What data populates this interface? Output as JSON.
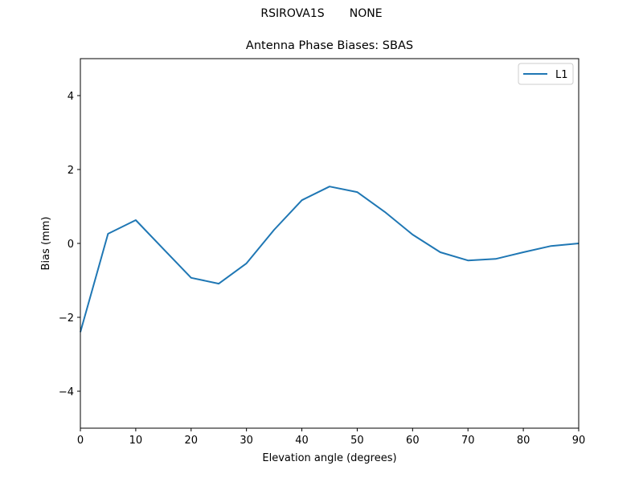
{
  "figure": {
    "suptitle": "RSIROVA1S       NONE",
    "title": "Antenna Phase Biases: SBAS"
  },
  "colors": {
    "series_L1": "#1f77b4",
    "axes": "#000000",
    "background": "#ffffff"
  },
  "chart_data": {
    "type": "line",
    "title": "Antenna Phase Biases: SBAS",
    "suptitle": "RSIROVA1S       NONE",
    "xlabel": "Elevation angle (degrees)",
    "ylabel": "Bias (mm)",
    "xlim": [
      0,
      90
    ],
    "ylim": [
      -5,
      5
    ],
    "xticks": [
      0,
      10,
      20,
      30,
      40,
      50,
      60,
      70,
      80,
      90
    ],
    "yticks": [
      -4,
      -2,
      0,
      2,
      4
    ],
    "xtick_labels": [
      "0",
      "10",
      "20",
      "30",
      "40",
      "50",
      "60",
      "70",
      "80",
      "90"
    ],
    "ytick_labels": [
      "−4",
      "−2",
      "0",
      "2",
      "4"
    ],
    "grid": false,
    "legend": {
      "position": "upper right",
      "entries": [
        "L1"
      ]
    },
    "x": [
      0,
      5,
      10,
      15,
      20,
      25,
      30,
      35,
      40,
      45,
      50,
      55,
      60,
      65,
      70,
      75,
      80,
      85,
      90
    ],
    "series": [
      {
        "name": "L1",
        "color": "#1f77b4",
        "values": [
          -2.4,
          0.26,
          0.63,
          -0.15,
          -0.93,
          -1.09,
          -0.54,
          0.37,
          1.17,
          1.54,
          1.39,
          0.85,
          0.24,
          -0.24,
          -0.46,
          -0.42,
          -0.24,
          -0.07,
          0.0
        ]
      }
    ]
  }
}
